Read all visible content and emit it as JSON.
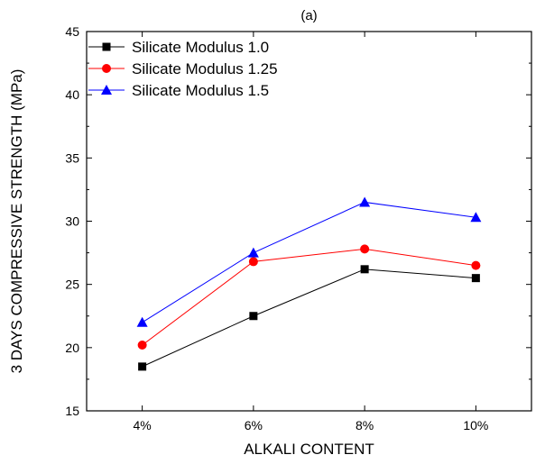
{
  "chart_data": {
    "type": "line",
    "title": "(a)",
    "xlabel": "ALKALI CONTENT",
    "ylabel": "3 DAYS COMPRESSIVE STRENGTH (MPa)",
    "categories": [
      "4%",
      "6%",
      "8%",
      "10%"
    ],
    "ylim": [
      15,
      45
    ],
    "yticks": [
      "15",
      "20",
      "25",
      "30",
      "35",
      "40",
      "45"
    ],
    "grid": false,
    "legend_position": "top-left",
    "series": [
      {
        "name": "Silicate Modulus 1.0",
        "values": [
          18.5,
          22.5,
          26.2,
          25.5
        ],
        "color": "#000000",
        "marker": "square"
      },
      {
        "name": "Silicate Modulus 1.25",
        "values": [
          20.2,
          26.8,
          27.8,
          26.5
        ],
        "color": "#ff0000",
        "marker": "circle"
      },
      {
        "name": "Silicate Modulus 1.5",
        "values": [
          22.0,
          27.5,
          31.5,
          30.3
        ],
        "color": "#0000ff",
        "marker": "triangle"
      }
    ]
  }
}
